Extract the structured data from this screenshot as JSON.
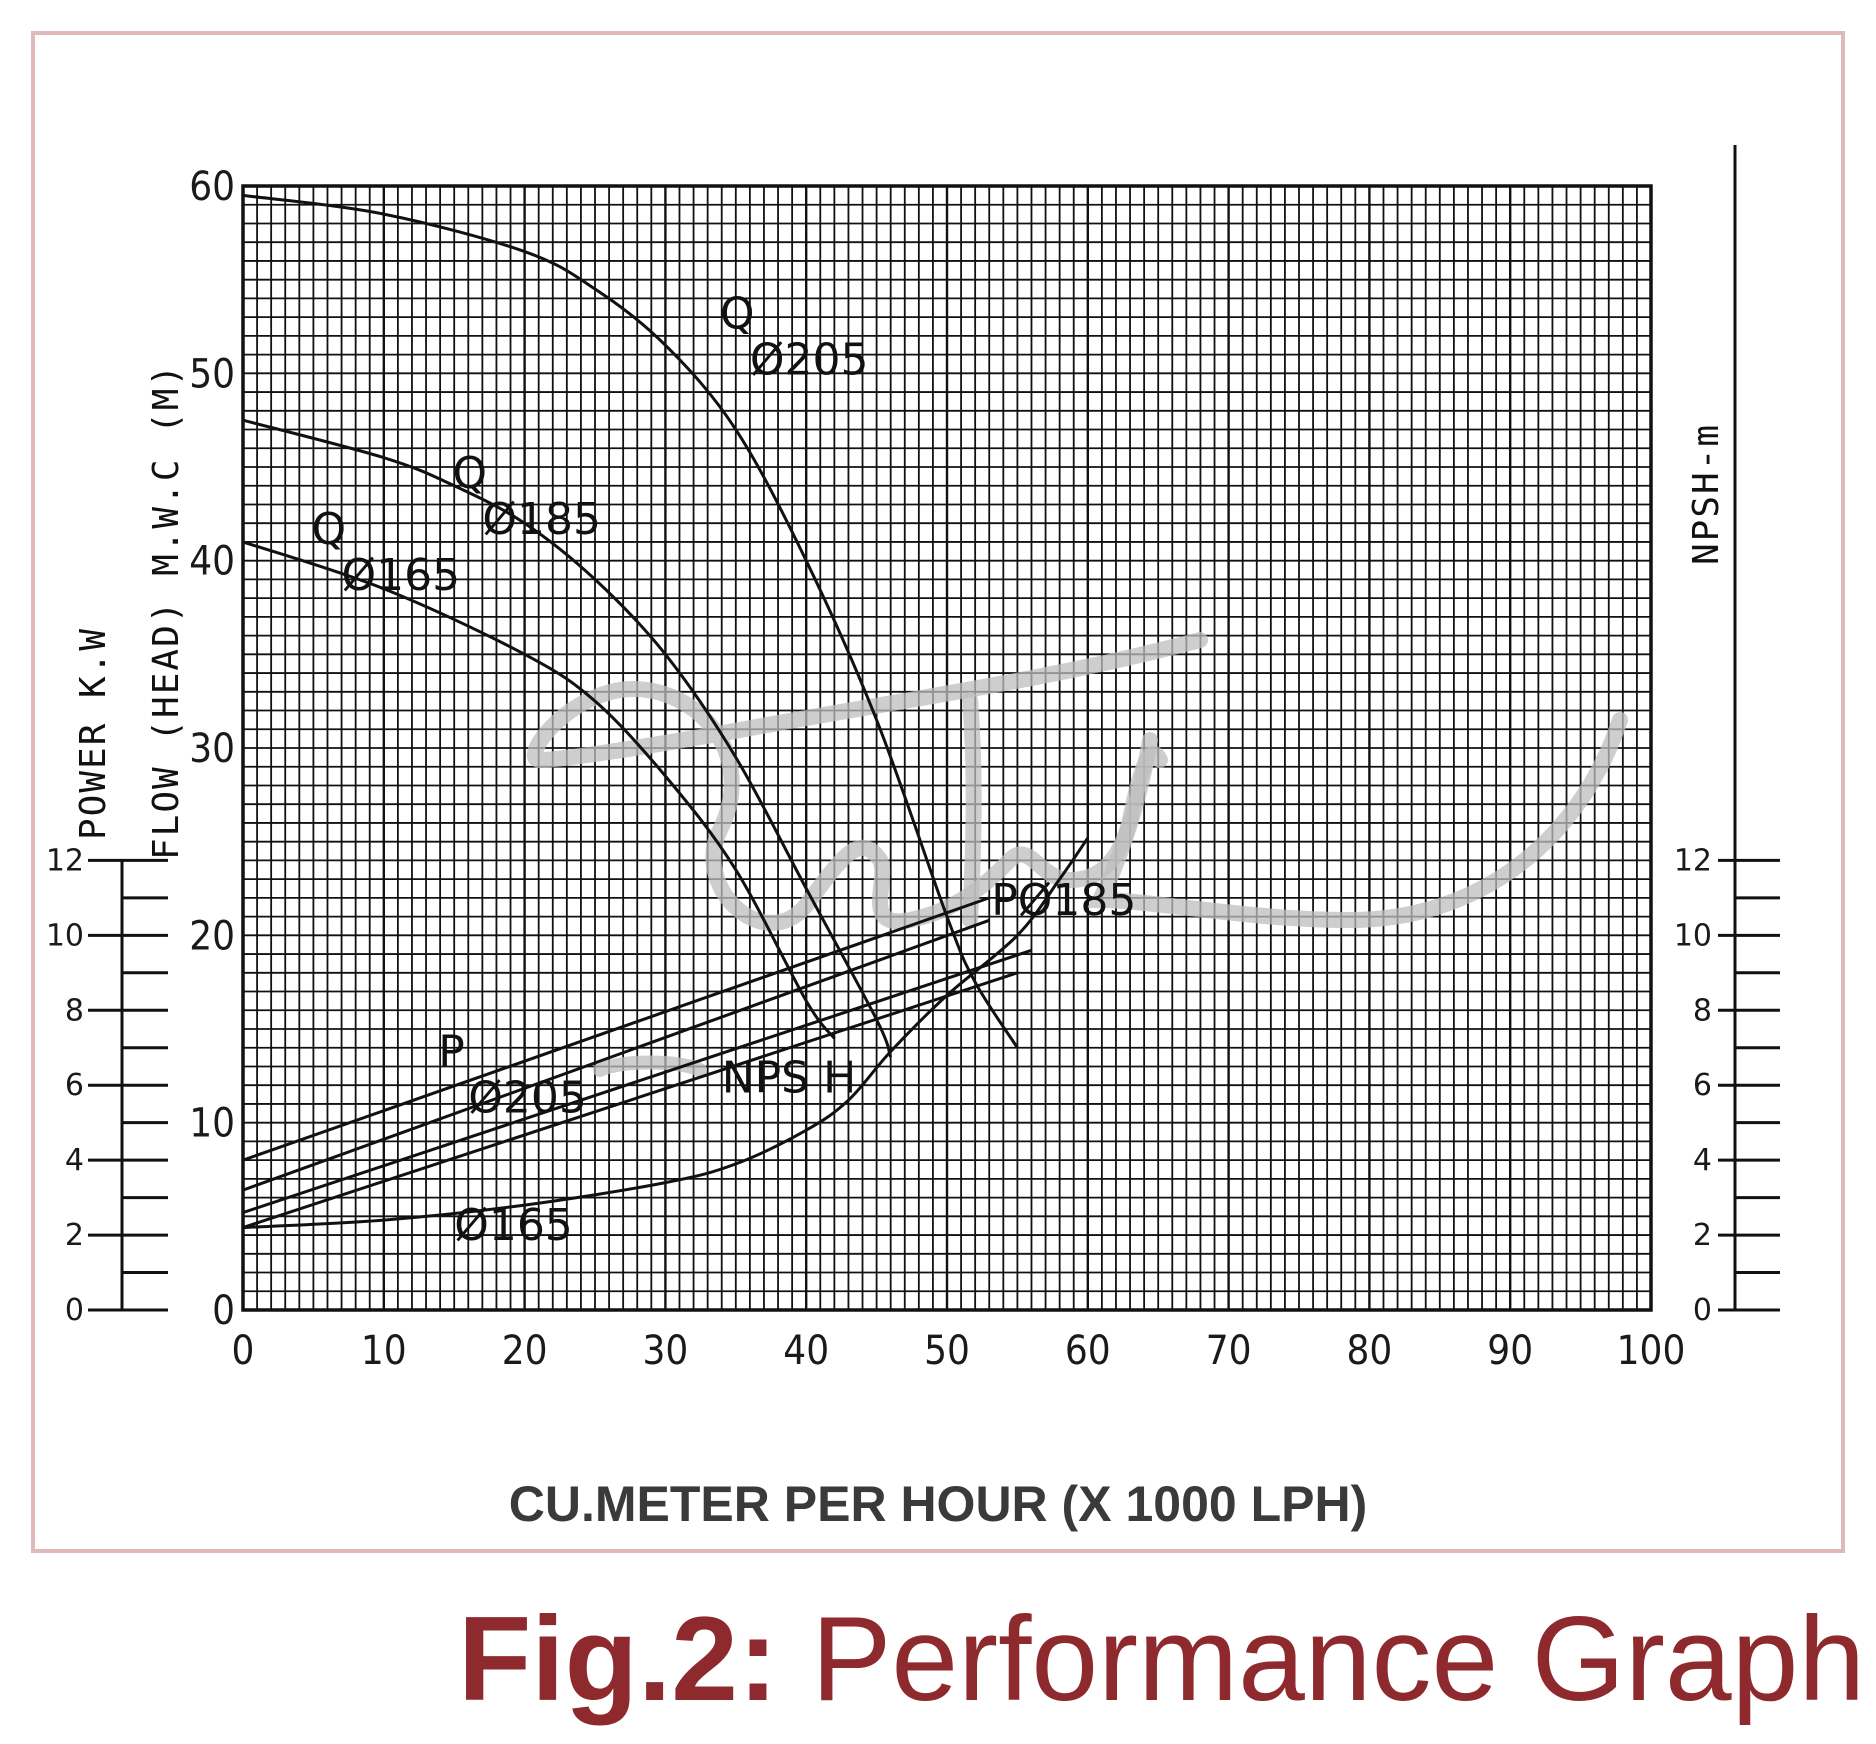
{
  "chart_data": {
    "type": "line",
    "title": "",
    "xlabel": "CU.METER PER HOUR (X 1000 LPH)",
    "ylabel_head": "FLOW (HEAD) M.W.C (M)",
    "ylabel_power": "POWER K.W",
    "ylabel_right": "NPSH-m",
    "xlim": [
      0,
      100
    ],
    "ylim": [
      0,
      60
    ],
    "power_lim": [
      0,
      12
    ],
    "npsh_lim": [
      0,
      12
    ],
    "x_ticks": [
      "0",
      "10",
      "20",
      "30",
      "40",
      "50",
      "60",
      "70",
      "80",
      "90",
      "100"
    ],
    "y_ticks": [
      "0",
      "10",
      "20",
      "30",
      "40",
      "50",
      "60"
    ],
    "power_ticks": [
      "0",
      "2",
      "4",
      "6",
      "8",
      "10",
      "12"
    ],
    "npsh_ticks": [
      "0",
      "2",
      "4",
      "6",
      "8",
      "10",
      "12"
    ],
    "grid": true,
    "head_series": [
      {
        "label_top": "Q",
        "label_bottom": "Ø205",
        "x": [
          0,
          10,
          20,
          25,
          30,
          35,
          40,
          45,
          50,
          52,
          55
        ],
        "y": [
          59.5,
          58.5,
          56.5,
          54.5,
          51.5,
          47.0,
          40.0,
          31.5,
          21.0,
          17.5,
          14.0
        ],
        "label_x": 36,
        "label_y": 51
      },
      {
        "label_top": "Q",
        "label_bottom": "Ø185",
        "x": [
          0,
          10,
          15,
          20,
          25,
          30,
          35,
          40,
          45,
          46
        ],
        "y": [
          47.5,
          45.5,
          44.0,
          42.0,
          39.0,
          35.0,
          29.5,
          22.5,
          15.5,
          13.5
        ],
        "label_x": 17,
        "label_y": 42.5
      },
      {
        "label_top": "Q",
        "label_bottom": "Ø165",
        "x": [
          0,
          10,
          20,
          25,
          30,
          35,
          40,
          42
        ],
        "y": [
          41.0,
          38.5,
          35.0,
          32.5,
          28.5,
          23.5,
          16.5,
          14.5
        ],
        "label_x": 7,
        "label_y": 39.5
      }
    ],
    "power_series": [
      {
        "label_top": "P",
        "label_bottom": "Ø205",
        "x": [
          0,
          53
        ],
        "y": [
          4.0,
          11.0
        ],
        "label_x": 16,
        "label_y": 5.8
      },
      {
        "label_top": "",
        "label_bottom": "",
        "x": [
          0,
          53
        ],
        "y": [
          3.2,
          10.4
        ],
        "label_x": 0,
        "label_y": 0
      },
      {
        "label_top": "",
        "label_bottom": "Ø165",
        "x": [
          0,
          56
        ],
        "y": [
          2.6,
          9.6
        ],
        "label_x": 15,
        "label_y": 2.4
      },
      {
        "label_top": "",
        "label_bottom": "",
        "x": [
          0,
          55
        ],
        "y": [
          2.2,
          9.0
        ],
        "label_x": 0,
        "label_y": 0
      }
    ],
    "npsh_series": [
      {
        "label_top": "NPS H",
        "label_bottom": "",
        "x": [
          0,
          10,
          20,
          30,
          35,
          40,
          43,
          46,
          50,
          55,
          58,
          60
        ],
        "y": [
          2.2,
          2.4,
          2.8,
          3.4,
          3.9,
          4.8,
          5.6,
          6.9,
          8.4,
          10.0,
          11.5,
          12.6
        ],
        "label_x": 34,
        "label_y": 5.8
      }
    ],
    "power_extra_label": "Ø185",
    "power_extra_label_prefix": "P",
    "power_extra_label_x": 53,
    "power_extra_label_y": 21.5
  },
  "caption": {
    "bold": "Fig.2:",
    "normal": " Performance Graph"
  },
  "colors": {
    "frame": "#e2b9b9",
    "caption": "#8e2a2e",
    "watermark": "#bdbdbd",
    "ink": "#111111"
  }
}
